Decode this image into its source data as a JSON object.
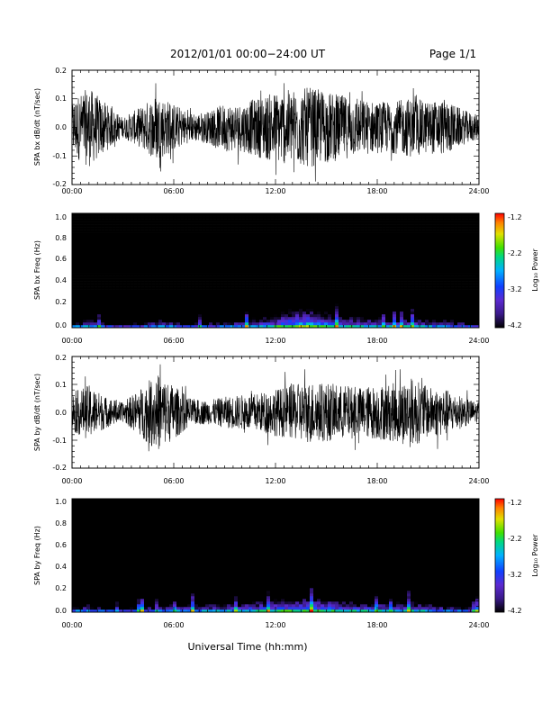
{
  "header": {
    "title": "2012/01/01   00:00−24:00  UT",
    "page": "Page 1/1"
  },
  "x_axis": {
    "label": "Universal Time (hh:mm)",
    "ticks": [
      "00:00",
      "06:00",
      "12:00",
      "18:00",
      "24:00"
    ],
    "range_hours": [
      0,
      24
    ]
  },
  "colorbar": {
    "label": "Log₁₀ Power",
    "range": [
      -4.2,
      -1.2
    ],
    "ticks": [
      "-1.2",
      "-2.2",
      "-3.2",
      "-4.2"
    ]
  },
  "colors": {
    "trace": "#000000",
    "colormap": [
      "#000000",
      "#3a1a8a",
      "#5b2ad0",
      "#1040ff",
      "#00b0ff",
      "#00d880",
      "#40e000",
      "#e0e000",
      "#ff8000",
      "#ff0000"
    ]
  },
  "chart_data": [
    {
      "type": "line",
      "panel": "bx-waveform",
      "ylabel": "SPA bx dB/dt (nT/sec)",
      "ylim": [
        -0.2,
        0.2
      ],
      "yticks": [
        "0.2",
        "0.1",
        "0.0",
        "-0.1",
        "-0.2"
      ],
      "amplitude_envelope": {
        "x_hours": [
          0,
          1,
          2,
          3,
          4,
          5,
          6,
          7,
          8,
          9,
          10,
          11,
          12,
          13,
          14,
          15,
          16,
          17,
          18,
          19,
          20,
          21,
          22,
          23,
          24
        ],
        "peak_abs": [
          0.14,
          0.2,
          0.12,
          0.05,
          0.1,
          0.17,
          0.12,
          0.07,
          0.08,
          0.12,
          0.12,
          0.15,
          0.18,
          0.19,
          0.2,
          0.18,
          0.16,
          0.14,
          0.13,
          0.13,
          0.15,
          0.13,
          0.14,
          0.09,
          0.06
        ]
      }
    },
    {
      "type": "heatmap",
      "panel": "bx-spectrogram",
      "ylabel": "SPA bx Freq (Hz)",
      "ylim": [
        0.0,
        1.0
      ],
      "yticks": [
        "1.0",
        "0.8",
        "0.6",
        "0.4",
        "0.2",
        "0.0"
      ],
      "zlim": [
        -4.2,
        -1.2
      ],
      "low_frequency_power_by_hour": {
        "x_hours": [
          0,
          1,
          2,
          3,
          4,
          5,
          6,
          7,
          8,
          9,
          10,
          11,
          12,
          13,
          14,
          15,
          16,
          17,
          18,
          19,
          20,
          21,
          22,
          23,
          24
        ],
        "log_power": [
          -2.8,
          -2.6,
          -2.9,
          -3.3,
          -3.0,
          -2.7,
          -2.8,
          -3.1,
          -3.0,
          -2.8,
          -2.7,
          -2.5,
          -2.2,
          -1.8,
          -1.7,
          -2.0,
          -2.3,
          -2.4,
          -2.5,
          -2.6,
          -2.5,
          -2.6,
          -2.7,
          -2.9,
          -3.1
        ]
      }
    },
    {
      "type": "line",
      "panel": "by-waveform",
      "ylabel": "SPA by dB/dt (nT/sec)",
      "ylim": [
        -0.2,
        0.2
      ],
      "yticks": [
        "0.2",
        "0.1",
        "0.0",
        "-0.1",
        "-0.2"
      ],
      "amplitude_envelope": {
        "x_hours": [
          0,
          1,
          2,
          3,
          4,
          5,
          6,
          7,
          8,
          9,
          10,
          11,
          12,
          13,
          14,
          15,
          16,
          17,
          18,
          19,
          20,
          21,
          22,
          23,
          24
        ],
        "peak_abs": [
          0.1,
          0.14,
          0.08,
          0.05,
          0.12,
          0.2,
          0.14,
          0.07,
          0.06,
          0.08,
          0.09,
          0.1,
          0.12,
          0.14,
          0.16,
          0.15,
          0.14,
          0.13,
          0.14,
          0.15,
          0.18,
          0.13,
          0.12,
          0.08,
          0.05
        ]
      }
    },
    {
      "type": "heatmap",
      "panel": "by-spectrogram",
      "ylabel": "SPA by Freq (Hz)",
      "ylim": [
        0.0,
        1.0
      ],
      "yticks": [
        "1.0",
        "0.8",
        "0.6",
        "0.4",
        "0.2",
        "0.0"
      ],
      "zlim": [
        -4.2,
        -1.2
      ],
      "low_frequency_power_by_hour": {
        "x_hours": [
          0,
          1,
          2,
          3,
          4,
          5,
          6,
          7,
          8,
          9,
          10,
          11,
          12,
          13,
          14,
          15,
          16,
          17,
          18,
          19,
          20,
          21,
          22,
          23,
          24
        ],
        "log_power": [
          -2.9,
          -2.7,
          -3.0,
          -3.2,
          -3.0,
          -2.8,
          -2.7,
          -2.7,
          -2.6,
          -2.5,
          -2.4,
          -2.3,
          -2.2,
          -2.1,
          -2.0,
          -2.1,
          -2.3,
          -2.4,
          -2.4,
          -2.5,
          -2.4,
          -2.6,
          -2.7,
          -2.9,
          -3.1
        ]
      }
    }
  ]
}
